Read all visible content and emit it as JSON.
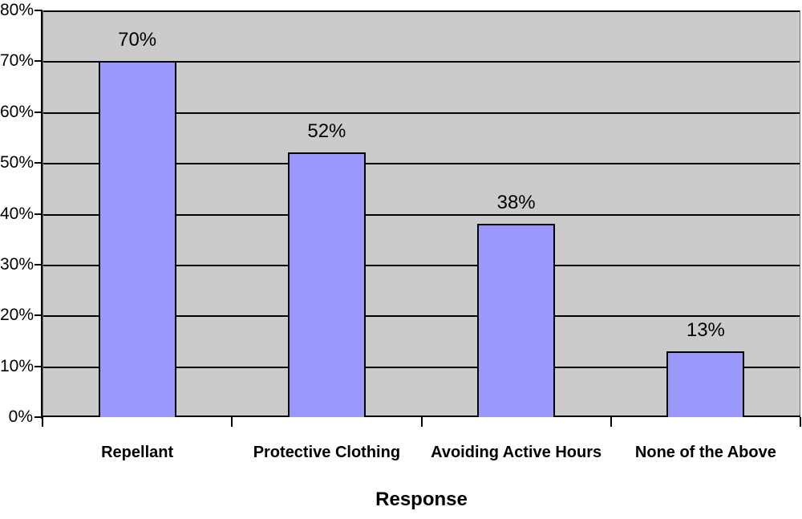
{
  "chart_data": {
    "type": "bar",
    "title": "",
    "categories": [
      "Repellant",
      "Protective Clothing",
      "Avoiding Active Hours",
      "None of the Above"
    ],
    "values": [
      70,
      52,
      38,
      13
    ],
    "value_labels": [
      "70%",
      "52%",
      "38%",
      "13%"
    ],
    "xlabel": "Response",
    "ylabel": "",
    "ylim": [
      0,
      80
    ],
    "ytick_step": 10,
    "ytick_labels": [
      "0%",
      "10%",
      "20%",
      "30%",
      "40%",
      "50%",
      "60%",
      "70%",
      "80%"
    ],
    "grid": true,
    "legend_position": "none",
    "colors": {
      "bar_fill": "#9A99FB",
      "bar_border": "#000000",
      "plot_background": "#CBCBCB",
      "gridline": "#000000",
      "axis": "#000000",
      "text": "#000000",
      "background": "#FFFFFF"
    }
  }
}
